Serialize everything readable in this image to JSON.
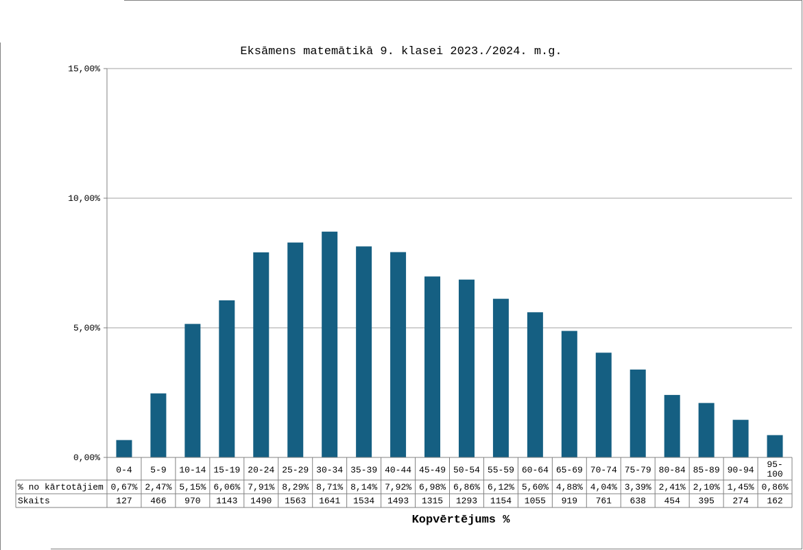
{
  "chart_data": {
    "type": "bar",
    "title": "Eksāmens matemātikā 9. klasei 2023./2024. m.g.",
    "xlabel": "Kopvērtējums %",
    "ylabel": "",
    "ylim": [
      0,
      15
    ],
    "y_ticks": [
      "0,00%",
      "5,00%",
      "10,00%",
      "15,00%"
    ],
    "y_tick_values": [
      0,
      5,
      10,
      15
    ],
    "grid": true,
    "bar_color": "#155f82",
    "categories": [
      "0-4",
      "5-9",
      "10-14",
      "15-19",
      "20-24",
      "25-29",
      "30-34",
      "35-39",
      "40-44",
      "45-49",
      "50-54",
      "55-59",
      "60-64",
      "65-69",
      "70-74",
      "75-79",
      "80-84",
      "85-89",
      "90-94",
      "95-\n100"
    ],
    "values": [
      0.67,
      2.47,
      5.15,
      6.06,
      7.91,
      8.29,
      8.71,
      8.14,
      7.92,
      6.98,
      6.86,
      6.12,
      5.6,
      4.88,
      4.04,
      3.39,
      2.41,
      2.1,
      1.45,
      0.86
    ],
    "table": {
      "rows": [
        {
          "name": "% no kārtotājiem",
          "values": [
            "0,67%",
            "2,47%",
            "5,15%",
            "6,06%",
            "7,91%",
            "8,29%",
            "8,71%",
            "8,14%",
            "7,92%",
            "6,98%",
            "6,86%",
            "6,12%",
            "5,60%",
            "4,88%",
            "4,04%",
            "3,39%",
            "2,41%",
            "2,10%",
            "1,45%",
            "0,86%"
          ]
        },
        {
          "name": "Skaits",
          "values": [
            "127",
            "466",
            "970",
            "1143",
            "1490",
            "1563",
            "1641",
            "1534",
            "1493",
            "1315",
            "1293",
            "1154",
            "1055",
            "919",
            "761",
            "638",
            "454",
            "395",
            "274",
            "162"
          ]
        }
      ]
    }
  }
}
